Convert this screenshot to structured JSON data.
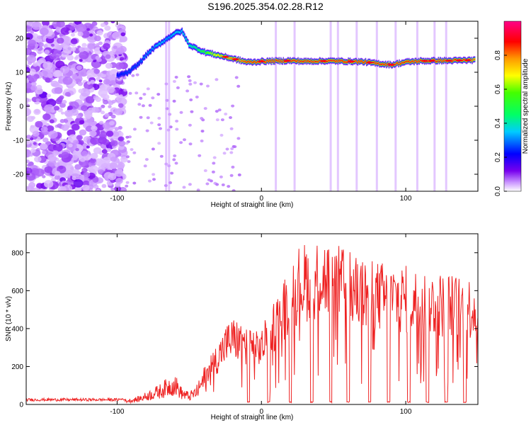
{
  "title": "S196.2025.354.02.28.R12",
  "colorbar": {
    "label": "Normalized spectral amplitude",
    "ticks": [
      "0.0",
      "0.2",
      "0.4",
      "0.6",
      "0.8"
    ],
    "tick_values": [
      0.0,
      0.2,
      0.4,
      0.6,
      0.8
    ],
    "range": [
      0,
      1
    ],
    "colors": [
      "#ffffff",
      "#cc99ff",
      "#6600ee",
      "#0000ff",
      "#00ffff",
      "#00ff00",
      "#ffff00",
      "#ff8800",
      "#ff0000",
      "#ff00aa"
    ]
  },
  "chart_data": [
    {
      "type": "heatmap",
      "name": "spectrogram",
      "xlabel": "Height of straight line (km)",
      "ylabel": "Frequency (Hz)",
      "xlim": [
        -163,
        150
      ],
      "ylim": [
        -25,
        25
      ],
      "x_ticks": [
        -100,
        0,
        100
      ],
      "x_tick_labels": [
        "-100",
        "0",
        "100"
      ],
      "y_ticks": [
        -20,
        -10,
        0,
        10,
        20
      ],
      "y_tick_labels": [
        "-20",
        "-10",
        "0",
        "10",
        "20"
      ],
      "ridge": {
        "description": "dominant frequency track",
        "x": [
          -100,
          -92,
          -85,
          -80,
          -75,
          -70,
          -65,
          -60,
          -55,
          -50,
          -45,
          -40,
          -35,
          -30,
          -25,
          -20,
          -15,
          -10,
          -5,
          0,
          10,
          20,
          30,
          40,
          50,
          60,
          70,
          80,
          90,
          100,
          110,
          120,
          130,
          140,
          148
        ],
        "y": [
          9,
          10,
          12.5,
          15,
          17,
          18.5,
          20,
          21.5,
          22,
          18,
          17,
          16,
          15.5,
          15,
          14.5,
          14,
          13.5,
          13,
          13,
          13.2,
          13.3,
          13.4,
          13.2,
          13.3,
          13.3,
          13.2,
          13.1,
          12.6,
          12.2,
          13,
          13.3,
          13.4,
          13.4,
          13.5,
          13.6
        ],
        "amplitude": [
          0.25,
          0.3,
          0.3,
          0.35,
          0.35,
          0.4,
          0.35,
          0.4,
          0.4,
          0.45,
          0.5,
          0.6,
          0.7,
          0.8,
          0.85,
          0.9,
          0.9,
          0.95,
          0.95,
          0.95,
          0.95,
          0.95,
          0.95,
          0.95,
          0.95,
          0.95,
          0.95,
          0.95,
          0.95,
          0.95,
          0.95,
          0.95,
          0.95,
          0.95,
          0.9
        ]
      },
      "noise_region_x": [
        -163,
        -95
      ]
    },
    {
      "type": "line",
      "name": "snr",
      "xlabel": "Height of straight line (km)",
      "ylabel": "SNR (10 * v/v)",
      "xlim": [
        -163,
        150
      ],
      "ylim": [
        0,
        900
      ],
      "x_ticks": [
        -100,
        0,
        100
      ],
      "x_tick_labels": [
        "-100",
        "0",
        "100"
      ],
      "y_ticks": [
        0,
        200,
        400,
        600,
        800
      ],
      "y_tick_labels": [
        "0",
        "200",
        "400",
        "600",
        "800"
      ],
      "series": [
        {
          "name": "SNR",
          "color": "#ee2222",
          "envelope_x": [
            -163,
            -120,
            -100,
            -90,
            -85,
            -80,
            -75,
            -70,
            -65,
            -60,
            -55,
            -50,
            -45,
            -40,
            -35,
            -30,
            -25,
            -20,
            -15,
            -10,
            -5,
            0,
            5,
            10,
            15,
            20,
            25,
            30,
            35,
            40,
            45,
            50,
            55,
            60,
            65,
            70,
            80,
            90,
            100,
            110,
            120,
            130,
            140,
            150
          ],
          "envelope_y": [
            20,
            20,
            20,
            30,
            40,
            60,
            80,
            100,
            130,
            150,
            80,
            60,
            90,
            180,
            250,
            300,
            380,
            420,
            400,
            380,
            350,
            360,
            450,
            520,
            600,
            700,
            760,
            780,
            800,
            820,
            800,
            780,
            760,
            740,
            720,
            700,
            690,
            680,
            670,
            650,
            640,
            630,
            620,
            610
          ],
          "dropouts_x": [
            -9,
            5,
            20,
            35,
            48,
            60,
            75,
            88,
            102,
            115,
            128,
            141
          ],
          "dropout_y": 10
        }
      ]
    }
  ]
}
